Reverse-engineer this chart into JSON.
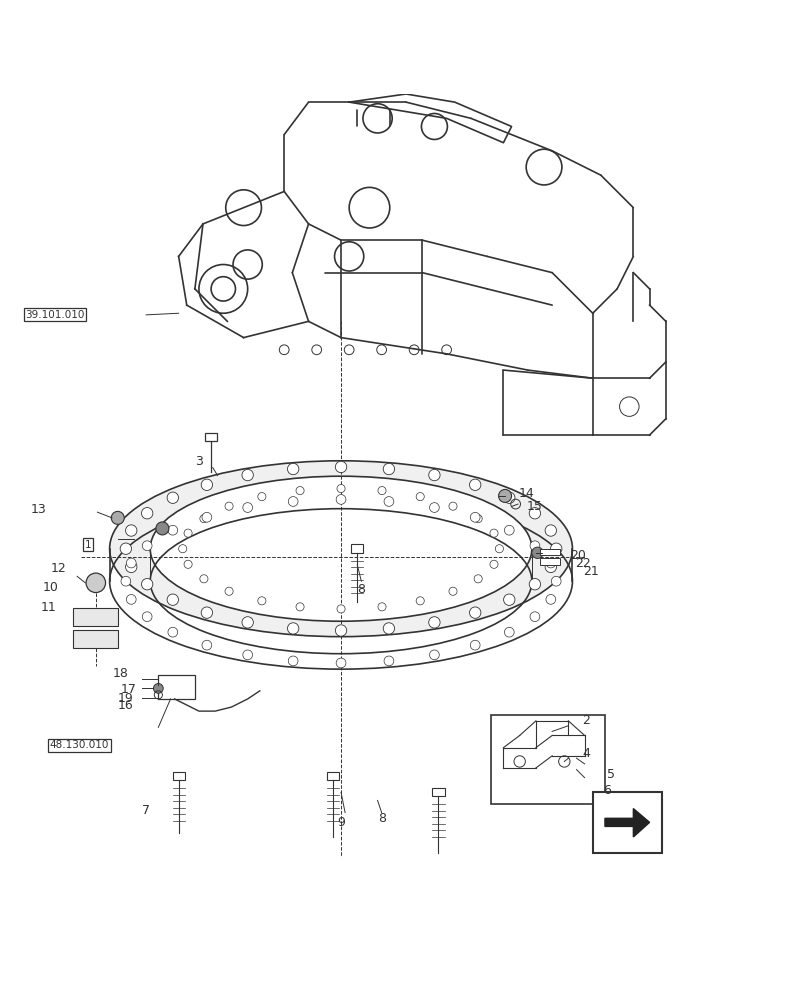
{
  "bg_color": "#ffffff",
  "line_color": "#333333",
  "fig_width": 8.12,
  "fig_height": 10.0,
  "dpi": 100
}
